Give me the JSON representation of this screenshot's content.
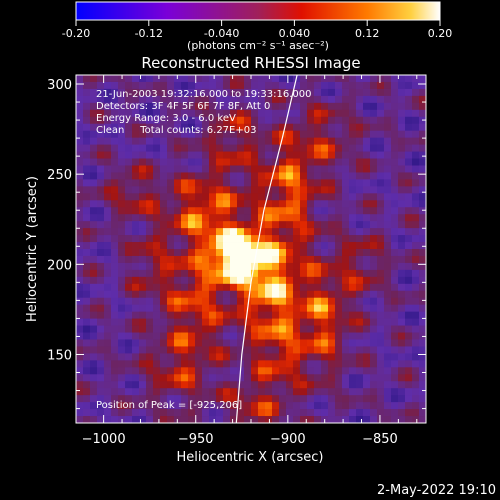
{
  "colorbar": {
    "ticks": [
      "-0.20",
      "-0.12",
      "-0.040",
      "0.040",
      "0.12",
      "0.20"
    ],
    "tick_values": [
      -0.2,
      -0.12,
      -0.04,
      0.04,
      0.12,
      0.2
    ],
    "range": [
      -0.2,
      0.2
    ],
    "unit_label": "(photons cm⁻² s⁻¹ asec⁻²)"
  },
  "chart_data": {
    "type": "heatmap",
    "title": "Reconstructed RHESSI Image",
    "xlabel": "Heliocentric X (arcsec)",
    "ylabel": "Heliocentric Y (arcsec)",
    "xlim": [
      -1015,
      -825
    ],
    "ylim": [
      112,
      305
    ],
    "x_ticks": [
      -1000,
      -950,
      -900,
      -850
    ],
    "y_ticks": [
      150,
      200,
      250,
      300
    ],
    "x_tick_labels": [
      "−1000",
      "−950",
      "−900",
      "−850"
    ],
    "y_tick_labels": [
      "150",
      "200",
      "250",
      "300"
    ],
    "colormap": "IDL red-temperature (blue-purple-red-orange-yellow-white)",
    "peak": {
      "x": -925,
      "y": 206
    },
    "limb_curve": [
      [
        -928,
        112
      ],
      [
        -925,
        150
      ],
      [
        -920,
        190
      ],
      [
        -913,
        230
      ],
      [
        -903,
        270
      ],
      [
        -895,
        305
      ]
    ],
    "info_lines": [
      "21-Jun-2003 19:32:16.000 to 19:33:16.000",
      "Detectors: 3F 4F 5F 6F 7F 8F, Att 0",
      "Energy Range: 3.0 - 6.0 keV",
      "Clean     Total counts: 6.27E+03"
    ],
    "peak_label": "Position of Peak = [-925,206]"
  },
  "footer": {
    "timestamp": "2-May-2022 19:10"
  }
}
